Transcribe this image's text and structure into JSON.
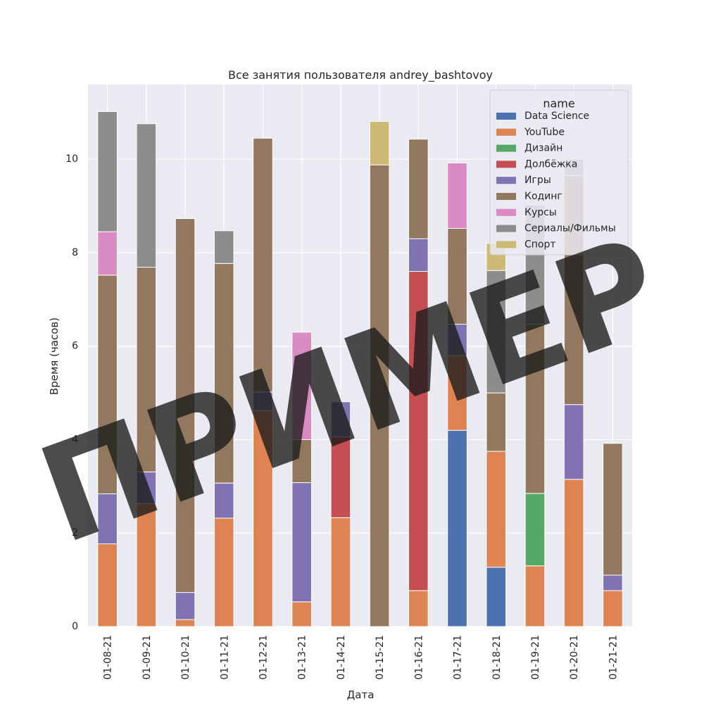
{
  "chart_data": {
    "type": "bar",
    "stacked": true,
    "title": "Все занятия пользователя andrey_bashtovoy",
    "xlabel": "Дата",
    "ylabel": "Время (часов)",
    "ylim": [
      0,
      11.6
    ],
    "yticks": [
      0,
      2,
      4,
      6,
      8,
      10
    ],
    "grid": true,
    "legend": {
      "title": "name",
      "placement": "top-right"
    },
    "categories": [
      "01-08-21",
      "01-09-21",
      "01-10-21",
      "01-11-21",
      "01-12-21",
      "01-13-21",
      "01-14-21",
      "01-15-21",
      "01-16-21",
      "01-17-21",
      "01-18-21",
      "01-19-21",
      "01-20-21",
      "01-21-21"
    ],
    "series": [
      {
        "name": "Data Science",
        "color": "#4c72b0",
        "values": [
          0,
          0,
          0,
          0,
          0,
          0,
          0,
          0,
          0,
          4.2,
          1.27,
          0,
          0,
          0
        ]
      },
      {
        "name": "YouTube",
        "color": "#dd8452",
        "values": [
          1.77,
          2.63,
          0.15,
          2.32,
          4.62,
          0.53,
          2.33,
          0,
          0.77,
          1.6,
          2.48,
          1.3,
          3.15,
          0.77
        ]
      },
      {
        "name": "Дизайн",
        "color": "#55a868",
        "values": [
          0,
          0,
          0,
          0,
          0,
          0,
          0,
          0,
          0,
          0,
          0,
          1.55,
          0,
          0
        ]
      },
      {
        "name": "Долбёжка",
        "color": "#c44e52",
        "values": [
          0,
          0,
          0,
          0,
          0,
          0,
          1.73,
          0,
          6.83,
          0,
          0,
          0,
          0,
          0
        ]
      },
      {
        "name": "Игры",
        "color": "#8172b3",
        "values": [
          1.07,
          0.68,
          0.58,
          0.75,
          0.4,
          2.55,
          0.75,
          0,
          0.7,
          0.67,
          0,
          0,
          1.6,
          0.33
        ]
      },
      {
        "name": "Кодинг",
        "color": "#937860",
        "values": [
          4.68,
          4.38,
          8.0,
          4.7,
          5.43,
          0.92,
          0,
          9.88,
          2.13,
          2.05,
          1.25,
          3.62,
          4.9,
          2.82
        ]
      },
      {
        "name": "Курсы",
        "color": "#da8bc3",
        "values": [
          0.93,
          0,
          0,
          0,
          0,
          2.3,
          0,
          0,
          0,
          1.4,
          0,
          0,
          0,
          0
        ]
      },
      {
        "name": "Сериалы/Фильмы",
        "color": "#8c8c8c",
        "values": [
          2.57,
          3.07,
          0,
          0.7,
          0,
          0,
          0,
          0,
          0,
          0,
          2.62,
          2.55,
          0.35,
          0
        ]
      },
      {
        "name": "Спорт",
        "color": "#ccb974",
        "values": [
          0,
          0,
          0,
          0,
          0,
          0,
          0,
          0.93,
          0,
          0,
          0.58,
          0,
          0,
          0
        ]
      }
    ]
  },
  "watermark": {
    "text": "ПРИМЕР"
  }
}
